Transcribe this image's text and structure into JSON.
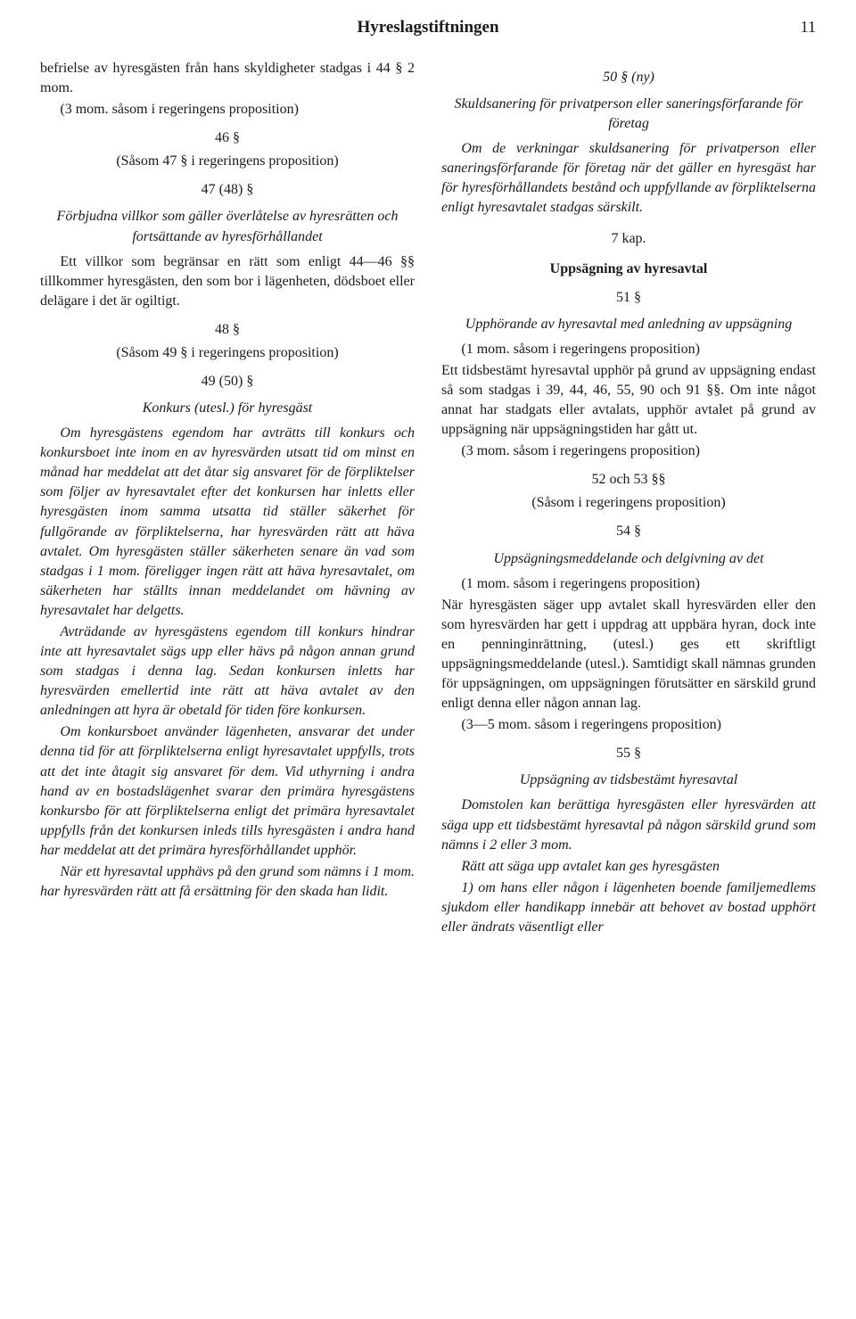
{
  "page": {
    "header_title": "Hyreslagstiftningen",
    "page_number": "11"
  },
  "left": {
    "p1": "befrielse av hyresgästen från hans skyldigheter stadgas i 44 § 2 mom.",
    "p2": "(3 mom. såsom i regeringens proposition)",
    "s46": "46 §",
    "p3": "(Såsom 47 § i regeringens proposition)",
    "s47": "47 (48) §",
    "h47": "Förbjudna villkor som gäller överlåtelse av hyresrätten och fortsättande av hyresförhållandet",
    "p4": "Ett villkor som begränsar en rätt som enligt 44—46 §§ tillkommer hyresgästen, den som bor i lägenheten, dödsboet eller delägare i det är ogiltigt.",
    "s48": "48 §",
    "p5": "(Såsom 49 § i regeringens proposition)",
    "s49": "49 (50) §",
    "h49": "Konkurs (utesl.) för hyresgäst",
    "p6": "Om hyresgästens egendom har avträtts till konkurs och konkursboet inte inom en av hyresvärden utsatt tid om minst en månad har meddelat att det åtar sig ansvaret för de förpliktelser som följer av hyresavtalet efter det konkursen har inletts eller hyresgästen inom samma utsatta tid ställer säkerhet för fullgörande av förpliktelserna, har hyresvärden rätt att häva avtalet. Om hyresgästen ställer säkerheten senare än vad som stadgas i 1 mom. föreligger ingen rätt att häva hyresavtalet, om säkerheten har ställts innan meddelandet om hävning av hyresavtalet har delgetts.",
    "p7": "Avträdande av hyresgästens egendom till konkurs hindrar inte att hyresavtalet sägs upp eller hävs på någon annan grund som stadgas i denna lag. Sedan konkursen inletts har hyresvärden emellertid inte rätt att häva avtalet av den anledningen att hyra är obetald för tiden före konkursen.",
    "p8": "Om konkursboet använder lägenheten, ansvarar det under denna tid för att förpliktelserna enligt hyresavtalet uppfylls, trots att det inte åtagit sig ansvaret för dem. Vid uthyrning i andra hand av en bostadslägenhet svarar den primära hyresgästens konkursbo för att förpliktelserna enligt det primära hyresavtalet uppfylls från det konkursen inleds tills hyresgästen i andra hand har meddelat att det primära hyresförhållandet upphör.",
    "p9": "När ett hyresavtal upphävs på den grund som nämns i 1 mom. har hyresvärden rätt att få ersättning för den skada han lidit."
  },
  "right": {
    "s50": "50 § (ny)",
    "h50": "Skuldsanering för privatperson eller saneringsförfarande för företag",
    "p1": "Om de verkningar skuldsanering för privatperson eller saneringsförfarande för företag när det gäller en hyresgäst har för hyresförhållandets bestånd och uppfyllande av förpliktelserna enligt hyresavtalet stadgas särskilt.",
    "kap7": "7 kap.",
    "kap7_title": "Uppsägning av hyresavtal",
    "s51": "51 §",
    "h51": "Upphörande av hyresavtal med anledning av uppsägning",
    "p2a": "(1 mom. såsom i regeringens proposition)",
    "p2b": "Ett tidsbestämt hyresavtal upphör på grund av uppsägning endast så som stadgas i 39, 44, 46, 55, 90 och 91 §§. Om inte något annat har stadgats eller avtalats, upphör avtalet på grund av uppsägning när uppsägningstiden har gått ut.",
    "p2c": "(3 mom. såsom i regeringens proposition)",
    "s52": "52 och 53 §§",
    "p3": "(Såsom i regeringens proposition)",
    "s54": "54 §",
    "h54": "Uppsägningsmeddelande och delgivning av det",
    "p4a": "(1 mom. såsom i regeringens proposition)",
    "p4b": "När hyresgästen säger upp avtalet skall hyresvärden eller den som hyresvärden har gett i uppdrag att uppbära hyran, dock inte en penninginrättning, (utesl.) ges ett skriftligt uppsägningsmeddelande (utesl.). Samtidigt skall nämnas grunden för uppsägningen, om uppsägningen förutsätter en särskild grund enligt denna eller någon annan lag.",
    "p4c": "(3—5 mom. såsom i regeringens proposition)",
    "s55": "55 §",
    "h55": "Uppsägning av tidsbestämt hyresavtal",
    "p5": "Domstolen kan berättiga hyresgästen eller hyresvärden att säga upp ett tidsbestämt hyresavtal på någon särskild grund som nämns i 2 eller 3 mom.",
    "p6": "Rätt att säga upp avtalet kan ges hyresgästen",
    "p7": "1) om hans eller någon i lägenheten boende familjemedlems sjukdom eller handikapp innebär att behovet av bostad upphört eller ändrats väsentligt eller"
  }
}
